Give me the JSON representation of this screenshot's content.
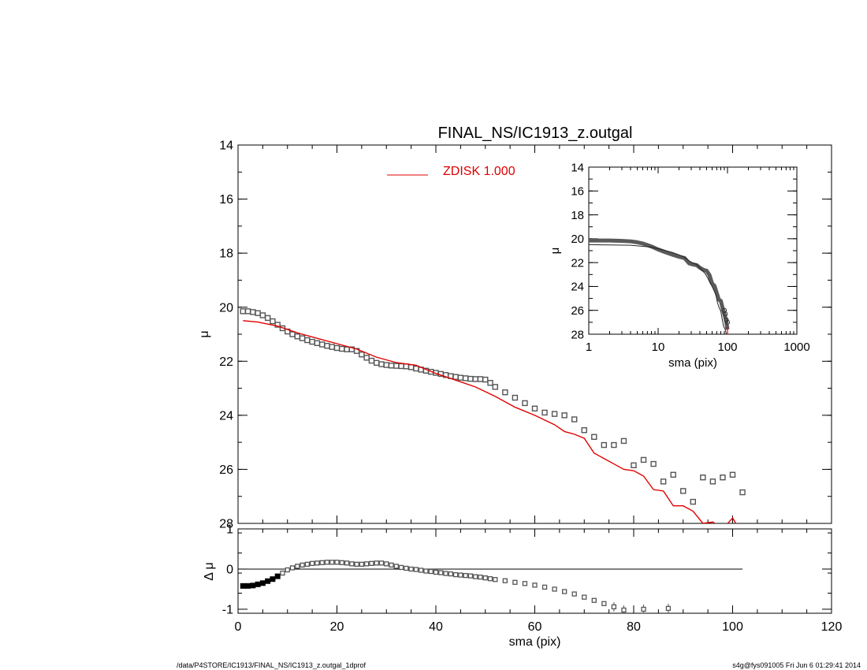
{
  "title": "FINAL_NS/IC1913_z.outgal",
  "footer": {
    "left": "/data/P4STORE/IC1913/FINAL_NS/IC1913_z.outgal_1dprof",
    "right": "s4g@fys091005  Fri Jun  6 01:29:41 2014"
  },
  "colors": {
    "model": "#e00000",
    "points": "#555555",
    "axes": "#000000"
  },
  "chart_data": [
    {
      "id": "main",
      "type": "scatter",
      "title": "FINAL_NS/IC1913_z.outgal",
      "xlabel": "",
      "ylabel": "μ",
      "xlim": [
        0,
        120
      ],
      "ylim": [
        28,
        14
      ],
      "y_inverted": true,
      "xticks": [
        0,
        20,
        40,
        60,
        80,
        100,
        120
      ],
      "yticks": [
        14,
        16,
        18,
        20,
        22,
        24,
        26,
        28
      ],
      "legend": {
        "label": "ZDISK  1.000",
        "placement": "top-center"
      },
      "series": [
        {
          "style": "squares",
          "x": [
            1,
            2,
            3,
            4,
            5,
            6,
            7,
            8,
            9,
            10,
            11,
            12,
            13,
            14,
            15,
            16,
            17,
            18,
            19,
            20,
            21,
            22,
            23,
            24,
            25,
            26,
            27,
            28,
            29,
            30,
            31,
            32,
            33,
            34,
            35,
            36,
            37,
            38,
            39,
            40,
            41,
            42,
            43,
            44,
            45,
            46,
            47,
            48,
            49,
            50,
            51,
            52,
            54,
            56,
            58,
            60,
            62,
            64,
            66,
            68,
            70,
            72,
            74,
            76,
            78,
            80,
            82,
            84,
            86,
            88,
            90,
            92,
            94,
            96,
            98,
            100,
            102
          ],
          "y": [
            20.15,
            20.15,
            20.18,
            20.22,
            20.3,
            20.4,
            20.52,
            20.65,
            20.78,
            20.9,
            21.0,
            21.08,
            21.15,
            21.22,
            21.28,
            21.33,
            21.38,
            21.43,
            21.47,
            21.51,
            21.54,
            21.56,
            21.56,
            21.62,
            21.75,
            21.87,
            21.98,
            22.06,
            22.11,
            22.14,
            22.16,
            22.17,
            22.18,
            22.19,
            22.22,
            22.27,
            22.31,
            22.35,
            22.39,
            22.43,
            22.47,
            22.51,
            22.55,
            22.58,
            22.61,
            22.63,
            22.65,
            22.66,
            22.66,
            22.68,
            22.8,
            22.95,
            23.15,
            23.35,
            23.55,
            23.75,
            23.9,
            23.95,
            24.0,
            24.15,
            24.55,
            24.8,
            25.1,
            25.1,
            24.95,
            25.85,
            25.65,
            25.8,
            26.45,
            26.2,
            26.8,
            27.2,
            26.3,
            26.45,
            26.3,
            26.2,
            26.85
          ]
        },
        {
          "style": "line",
          "color": "#e00000",
          "x": [
            1,
            4,
            8,
            12,
            16,
            20,
            24,
            28,
            32,
            36,
            40,
            44,
            48,
            52,
            56,
            60,
            64,
            66,
            68,
            70,
            72,
            74,
            76,
            78,
            80,
            82,
            84,
            86,
            88,
            90,
            92,
            94,
            96,
            98,
            100,
            102
          ],
          "y": [
            20.5,
            20.55,
            20.7,
            20.95,
            21.15,
            21.35,
            21.55,
            21.85,
            22.05,
            22.15,
            22.45,
            22.7,
            22.95,
            23.3,
            23.7,
            24.0,
            24.35,
            24.6,
            24.7,
            24.85,
            25.4,
            25.6,
            25.8,
            26.0,
            26.05,
            26.25,
            26.75,
            26.8,
            27.35,
            27.35,
            27.55,
            28.0,
            27.95,
            28.2,
            27.8,
            28.4
          ]
        }
      ]
    },
    {
      "id": "inset",
      "type": "line",
      "xlabel": "sma (pix)",
      "ylabel": "μ",
      "xscale": "log",
      "xlim": [
        1,
        1000
      ],
      "ylim": [
        28,
        14
      ],
      "y_inverted": true,
      "xticks": [
        1,
        10,
        100,
        1000
      ],
      "yticks": [
        14,
        16,
        18,
        20,
        22,
        24,
        26,
        28
      ],
      "series": [
        {
          "style": "thick-line",
          "x": [
            1,
            2,
            3,
            4,
            5,
            6,
            8,
            10,
            13,
            16,
            20,
            24,
            28,
            32,
            36,
            40,
            45,
            50,
            55,
            60,
            65,
            70,
            75,
            80,
            85,
            90,
            95,
            100
          ],
          "y": [
            20.15,
            20.15,
            20.18,
            20.22,
            20.3,
            20.4,
            20.65,
            20.9,
            21.15,
            21.33,
            21.51,
            21.62,
            22.06,
            22.16,
            22.22,
            22.43,
            22.61,
            22.68,
            23.05,
            23.75,
            23.95,
            24.55,
            25.1,
            25.2,
            25.8,
            26.3,
            26.8,
            27.6
          ]
        },
        {
          "style": "line",
          "x": [
            1,
            2,
            4,
            8,
            12,
            16,
            20,
            24,
            28,
            32,
            36,
            40,
            44,
            48,
            52,
            56,
            60,
            64,
            68,
            72,
            76,
            80,
            84,
            88,
            92,
            96,
            100
          ],
          "y": [
            20.5,
            20.52,
            20.55,
            20.7,
            20.95,
            21.15,
            21.35,
            21.55,
            21.85,
            22.05,
            22.15,
            22.45,
            22.7,
            22.95,
            23.3,
            23.7,
            24.0,
            24.35,
            24.7,
            25.4,
            25.8,
            26.05,
            26.75,
            27.35,
            27.55,
            27.95,
            28.4
          ]
        }
      ]
    },
    {
      "id": "residual",
      "type": "scatter",
      "xlabel": "sma (pix)",
      "ylabel": "Δ μ",
      "xlim": [
        0,
        120
      ],
      "ylim": [
        -1.1,
        1.0
      ],
      "xticks": [
        0,
        20,
        40,
        60,
        80,
        100,
        120
      ],
      "yticks": [
        -1,
        0,
        1
      ],
      "reference_line": {
        "y": 0,
        "x": [
          0,
          102
        ]
      },
      "series": [
        {
          "style": "squares",
          "x": [
            1,
            2,
            3,
            4,
            5,
            6,
            7,
            8,
            9,
            10,
            11,
            12,
            13,
            14,
            15,
            16,
            17,
            18,
            19,
            20,
            21,
            22,
            23,
            24,
            25,
            26,
            27,
            28,
            29,
            30,
            31,
            32,
            33,
            34,
            35,
            36,
            37,
            38,
            39,
            40,
            41,
            42,
            43,
            44,
            45,
            46,
            47,
            48,
            49,
            50,
            51,
            52,
            54,
            56,
            58,
            60,
            62,
            64,
            66,
            68,
            70,
            72,
            74,
            76,
            78,
            82,
            87
          ],
          "y": [
            -0.42,
            -0.42,
            -0.41,
            -0.38,
            -0.35,
            -0.3,
            -0.25,
            -0.18,
            -0.1,
            -0.02,
            0.03,
            0.07,
            0.1,
            0.12,
            0.14,
            0.15,
            0.16,
            0.17,
            0.17,
            0.17,
            0.16,
            0.15,
            0.13,
            0.12,
            0.12,
            0.13,
            0.14,
            0.15,
            0.15,
            0.13,
            0.1,
            0.07,
            0.04,
            0.02,
            0.0,
            -0.01,
            -0.03,
            -0.05,
            -0.06,
            -0.08,
            -0.09,
            -0.11,
            -0.12,
            -0.14,
            -0.15,
            -0.16,
            -0.17,
            -0.19,
            -0.2,
            -0.22,
            -0.24,
            -0.26,
            -0.29,
            -0.33,
            -0.36,
            -0.4,
            -0.45,
            -0.5,
            -0.56,
            -0.62,
            -0.7,
            -0.78,
            -0.86,
            -0.94,
            -1.02,
            -1.0,
            -0.98
          ]
        }
      ]
    }
  ]
}
